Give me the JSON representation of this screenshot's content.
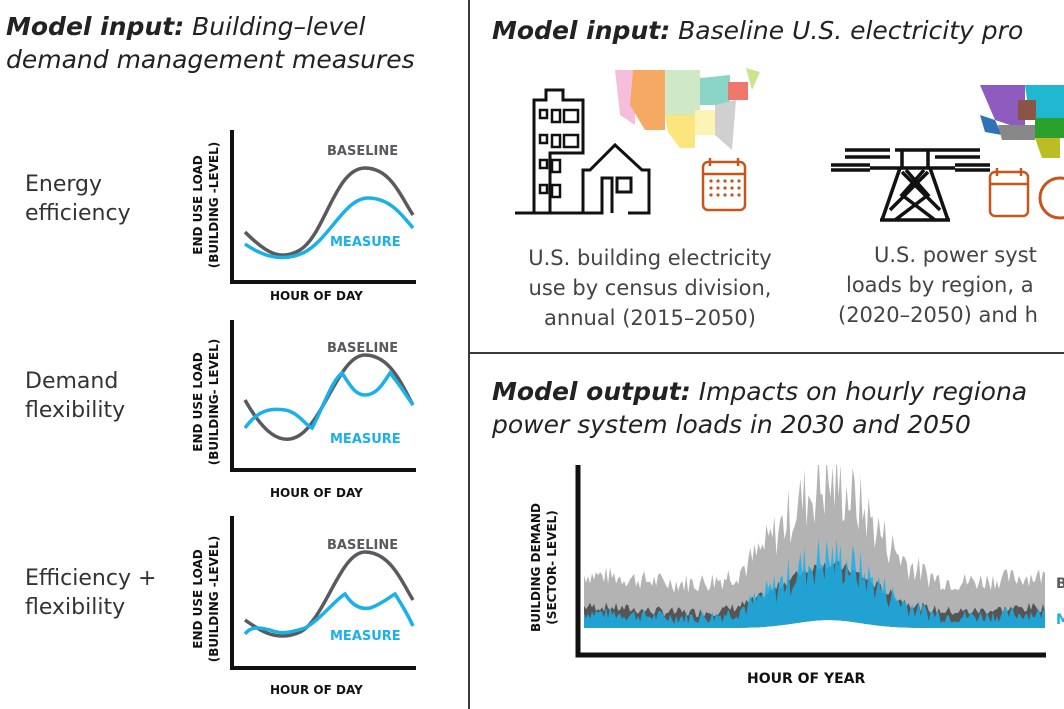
{
  "left": {
    "title_bold": "Model input:",
    "title_line1": " Building–level",
    "title_line2": "demand management measures",
    "rows": [
      {
        "label1": "Energy",
        "label2": "efficiency",
        "ylabel1": "END USE LOAD",
        "ylabel2": "(BUILDING -LEVEL)",
        "xlabel": "HOUR OF DAY",
        "baseline": "BASELINE",
        "measure": "MEASURE"
      },
      {
        "label1": "Demand",
        "label2": "flexibility",
        "ylabel1": "END USE LOAD",
        "ylabel2": "(BUILDING- LEVEL)",
        "xlabel": "HOUR OF DAY",
        "baseline": "BASELINE",
        "measure": "MEASURE"
      },
      {
        "label1": "Efficiency +",
        "label2": "flexibility",
        "ylabel1": "END USE LOAD",
        "ylabel2": "(BUILDING -LEVEL)",
        "xlabel": "HOUR OF DAY",
        "baseline": "BASELINE",
        "measure": "MEASURE"
      }
    ]
  },
  "top_right": {
    "title_bold": "Model input:",
    "title_rest": " Baseline U.S. electricity pro",
    "cap1": [
      "U.S. building electricity",
      "use by census division,",
      "annual (2015–2050)"
    ],
    "cap2": [
      "U.S. power syst",
      "loads by region, a",
      "(2020–2050) and h"
    ]
  },
  "bottom_right": {
    "title_bold": "Model output:",
    "title_rest": " Impacts on hourly regiona",
    "title_line2": "power system loads in 2030 and 2050",
    "ylabel1": "BUILDING DEMAND",
    "ylabel2": "(SECTOR- LEVEL)",
    "xlabel": "HOUR OF YEAR",
    "legend_b": "B",
    "legend_m": "M"
  },
  "colors": {
    "baseline": "#5a5a5c",
    "measure": "#1ab0ea",
    "calendar": "#c8551c",
    "divider": "#3a3a3a"
  }
}
